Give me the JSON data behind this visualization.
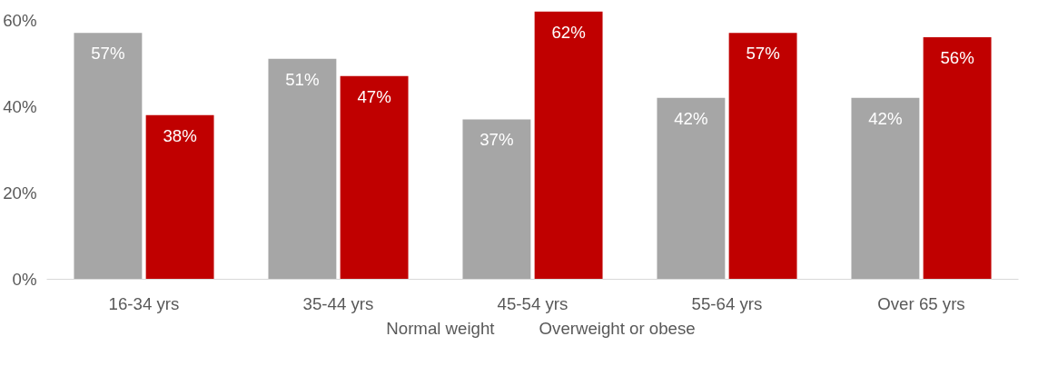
{
  "chart_data": {
    "type": "bar",
    "categories": [
      "16-34 yrs",
      "35-44 yrs",
      "45-54 yrs",
      "55-64 yrs",
      "Over 65 yrs"
    ],
    "series": [
      {
        "name": "Normal weight",
        "color": "#a6a6a6",
        "values": [
          57,
          51,
          37,
          42,
          42
        ],
        "value_labels": [
          "57%",
          "51%",
          "37%",
          "42%",
          "42%"
        ]
      },
      {
        "name": "Overweight or obese",
        "color": "#c00000",
        "values": [
          38,
          47,
          62,
          57,
          56
        ],
        "value_labels": [
          "38%",
          "47%",
          "62%",
          "57%",
          "56%"
        ]
      }
    ],
    "ylim": [
      0,
      62
    ],
    "yticks": [
      {
        "value": 0,
        "label": "0%"
      },
      {
        "value": 20,
        "label": "20%"
      },
      {
        "value": 40,
        "label": "40%"
      },
      {
        "value": 60,
        "label": "60%"
      }
    ],
    "grid": false,
    "legend": "bottom"
  }
}
